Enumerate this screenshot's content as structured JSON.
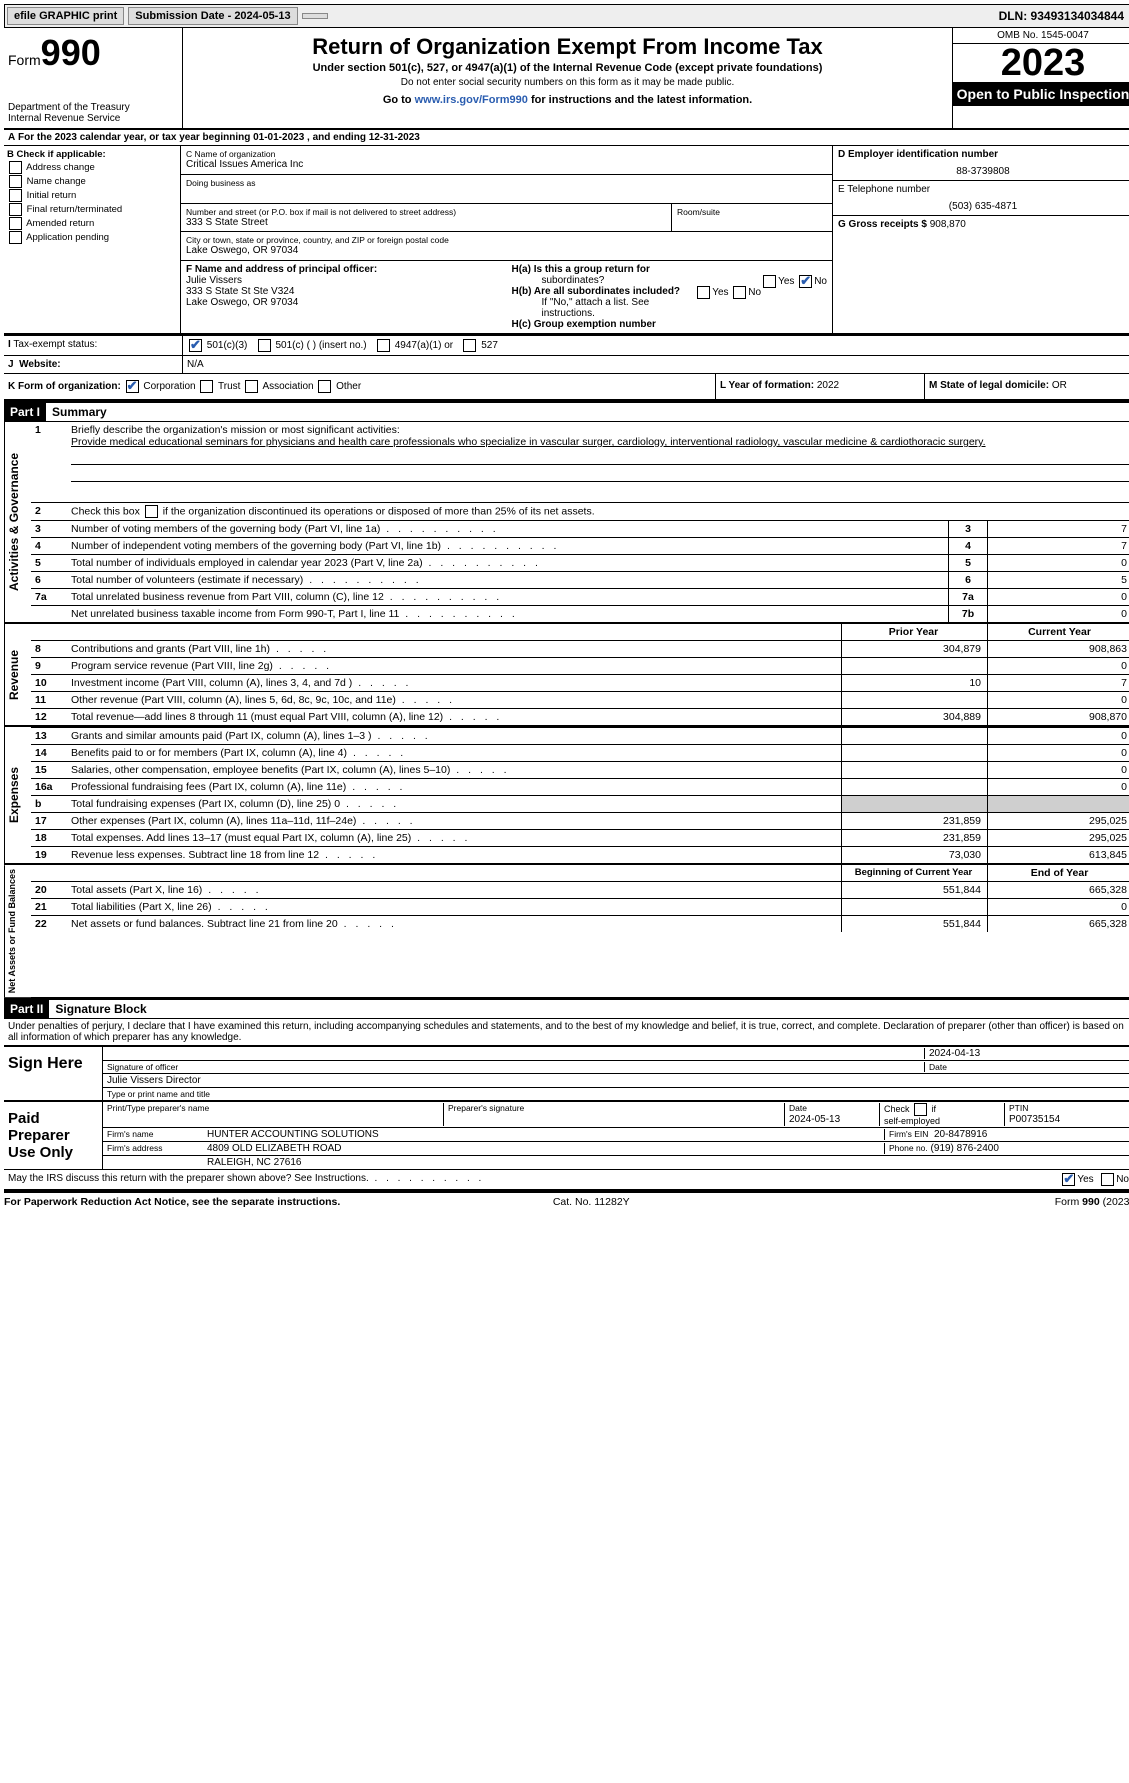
{
  "top": {
    "efile": "efile GRAPHIC print",
    "sub_label": "Submission Date - 2024-05-13",
    "dln": "DLN: 93493134034844"
  },
  "header": {
    "form_word": "Form",
    "form_num": "990",
    "title": "Return of Organization Exempt From Income Tax",
    "subtitle": "Under section 501(c), 527, or 4947(a)(1) of the Internal Revenue Code (except private foundations)",
    "warn": "Do not enter social security numbers on this form as it may be made public.",
    "goto_pre": "Go to ",
    "goto_link": "www.irs.gov/Form990",
    "goto_post": " for instructions and the latest information.",
    "dept": "Department of the Treasury",
    "irs": "Internal Revenue Service",
    "omb": "OMB No. 1545-0047",
    "year": "2023",
    "otpi": "Open to Public Inspection"
  },
  "rowA": "For the 2023 calendar year, or tax year beginning 01-01-2023   , and ending 12-31-2023",
  "boxB": {
    "hdr": "B Check if applicable:",
    "items": [
      "Address change",
      "Name change",
      "Initial return",
      "Final return/terminated",
      "Amended return",
      "Application pending"
    ]
  },
  "boxC": {
    "lbl_name": "C Name of organization",
    "org": "Critical Issues America Inc",
    "dba": "Doing business as",
    "street_lbl": "Number and street (or P.O. box if mail is not delivered to street address)",
    "street": "333 S State Street",
    "room_lbl": "Room/suite",
    "city_lbl": "City or town, state or province, country, and ZIP or foreign postal code",
    "city": "Lake Oswego, OR  97034"
  },
  "boxD": {
    "lbl": "D Employer identification number",
    "val": "88-3739808"
  },
  "boxE": {
    "lbl": "E Telephone number",
    "val": "(503) 635-4871"
  },
  "boxG": {
    "lbl": "G Gross receipts $",
    "val": "908,870"
  },
  "boxF": {
    "lbl": "F  Name and address of principal officer:",
    "name": "Julie Vissers",
    "addr1": "333 S State St Ste V324",
    "addr2": "Lake Oswego, OR  97034"
  },
  "boxH": {
    "a": "H(a)  Is this a group return for",
    "a2": "subordinates?",
    "b": "H(b)  Are all subordinates included?",
    "b_note": "If \"No,\" attach a list. See instructions.",
    "c": "H(c)  Group exemption number",
    "yes": "Yes",
    "no": "No"
  },
  "rowI": {
    "lbl": "Tax-exempt status:",
    "o1": "501(c)(3)",
    "o2": "501(c) (  ) (insert no.)",
    "o3": "4947(a)(1) or",
    "o4": "527"
  },
  "rowJ": {
    "lbl": "Website:",
    "val": "N/A"
  },
  "rowK": {
    "lbl": "K Form of organization:",
    "o1": "Corporation",
    "o2": "Trust",
    "o3": "Association",
    "o4": "Other"
  },
  "rowL": {
    "lbl": "L Year of formation:",
    "val": "2022"
  },
  "rowM": {
    "lbl": "M State of legal domicile:",
    "val": "OR"
  },
  "part1": {
    "hdr": "Part I",
    "title": "Summary",
    "line1_lbl": "Briefly describe the organization's mission or most significant activities:",
    "line1_txt": "Provide medical educational seminars for physicians and health care professionals who specialize in vascular surger, cardiology, interventional radiology, vascular medicine & cardiothoracic surgery.",
    "line2": "Check this box       if the organization discontinued its operations or disposed of more than 25% of its net assets.",
    "rows_ag": [
      {
        "n": "3",
        "t": "Number of voting members of the governing body (Part VI, line 1a)",
        "box": "3",
        "v": "7"
      },
      {
        "n": "4",
        "t": "Number of independent voting members of the governing body (Part VI, line 1b)",
        "box": "4",
        "v": "7"
      },
      {
        "n": "5",
        "t": "Total number of individuals employed in calendar year 2023 (Part V, line 2a)",
        "box": "5",
        "v": "0"
      },
      {
        "n": "6",
        "t": "Total number of volunteers (estimate if necessary)",
        "box": "6",
        "v": "5"
      },
      {
        "n": "7a",
        "t": "Total unrelated business revenue from Part VIII, column (C), line 12",
        "box": "7a",
        "v": "0"
      },
      {
        "n": "",
        "t": "Net unrelated business taxable income from Form 990-T, Part I, line 11",
        "box": "7b",
        "v": "0"
      }
    ],
    "hdr_py": "Prior Year",
    "hdr_cy": "Current Year",
    "rows_rev": [
      {
        "n": "8",
        "t": "Contributions and grants (Part VIII, line 1h)",
        "py": "304,879",
        "cy": "908,863"
      },
      {
        "n": "9",
        "t": "Program service revenue (Part VIII, line 2g)",
        "py": "",
        "cy": "0"
      },
      {
        "n": "10",
        "t": "Investment income (Part VIII, column (A), lines 3, 4, and 7d )",
        "py": "10",
        "cy": "7"
      },
      {
        "n": "11",
        "t": "Other revenue (Part VIII, column (A), lines 5, 6d, 8c, 9c, 10c, and 11e)",
        "py": "",
        "cy": "0"
      },
      {
        "n": "12",
        "t": "Total revenue—add lines 8 through 11 (must equal Part VIII, column (A), line 12)",
        "py": "304,889",
        "cy": "908,870"
      }
    ],
    "rows_exp": [
      {
        "n": "13",
        "t": "Grants and similar amounts paid (Part IX, column (A), lines 1–3 )",
        "py": "",
        "cy": "0"
      },
      {
        "n": "14",
        "t": "Benefits paid to or for members (Part IX, column (A), line 4)",
        "py": "",
        "cy": "0"
      },
      {
        "n": "15",
        "t": "Salaries, other compensation, employee benefits (Part IX, column (A), lines 5–10)",
        "py": "",
        "cy": "0"
      },
      {
        "n": "16a",
        "t": "Professional fundraising fees (Part IX, column (A), line 11e)",
        "py": "",
        "cy": "0"
      },
      {
        "n": "b",
        "t": "Total fundraising expenses (Part IX, column (D), line 25) 0",
        "py": "GREY",
        "cy": "GREY"
      },
      {
        "n": "17",
        "t": "Other expenses (Part IX, column (A), lines 11a–11d, 11f–24e)",
        "py": "231,859",
        "cy": "295,025"
      },
      {
        "n": "18",
        "t": "Total expenses. Add lines 13–17 (must equal Part IX, column (A), line 25)",
        "py": "231,859",
        "cy": "295,025"
      },
      {
        "n": "19",
        "t": "Revenue less expenses. Subtract line 18 from line 12",
        "py": "73,030",
        "cy": "613,845"
      }
    ],
    "hdr_boy": "Beginning of Current Year",
    "hdr_eoy": "End of Year",
    "rows_na": [
      {
        "n": "20",
        "t": "Total assets (Part X, line 16)",
        "py": "551,844",
        "cy": "665,328"
      },
      {
        "n": "21",
        "t": "Total liabilities (Part X, line 26)",
        "py": "",
        "cy": "0"
      },
      {
        "n": "22",
        "t": "Net assets or fund balances. Subtract line 21 from line 20",
        "py": "551,844",
        "cy": "665,328"
      }
    ],
    "vert_ag": "Activities & Governance",
    "vert_rev": "Revenue",
    "vert_exp": "Expenses",
    "vert_na": "Net Assets or Fund Balances"
  },
  "part2": {
    "hdr": "Part II",
    "title": "Signature Block",
    "decl": "Under penalties of perjury, I declare that I have examined this return, including accompanying schedules and statements, and to the best of my knowledge and belief, it is true, correct, and complete. Declaration of preparer (other than officer) is based on all information of which preparer has any knowledge.",
    "sign_here": "Sign Here",
    "sig_off": "Signature of officer",
    "sig_name": "Julie Vissers  Director",
    "sig_type": "Type or print name and title",
    "date_lbl": "Date",
    "date_val": "2024-04-13",
    "paid": "Paid Preparer Use Only",
    "pt_lbl": "Print/Type preparer's name",
    "ps_lbl": "Preparer's signature",
    "pdate_lbl": "Date",
    "pdate": "2024-05-13",
    "check_lbl": "Check       if self-employed",
    "ptin_lbl": "PTIN",
    "ptin": "P00735154",
    "firm_name_lbl": "Firm's name",
    "firm_name": "HUNTER ACCOUNTING SOLUTIONS",
    "firm_ein_lbl": "Firm's EIN",
    "firm_ein": "20-8478916",
    "firm_addr_lbl": "Firm's address",
    "firm_addr1": "4809 OLD ELIZABETH ROAD",
    "firm_addr2": "RALEIGH, NC  27616",
    "phone_lbl": "Phone no.",
    "phone": "(919) 876-2400",
    "discuss": "May the IRS discuss this return with the preparer shown above? See Instructions."
  },
  "footer": {
    "pra": "For Paperwork Reduction Act Notice, see the separate instructions.",
    "cat": "Cat. No. 11282Y",
    "form": "Form 990 (2023)"
  }
}
